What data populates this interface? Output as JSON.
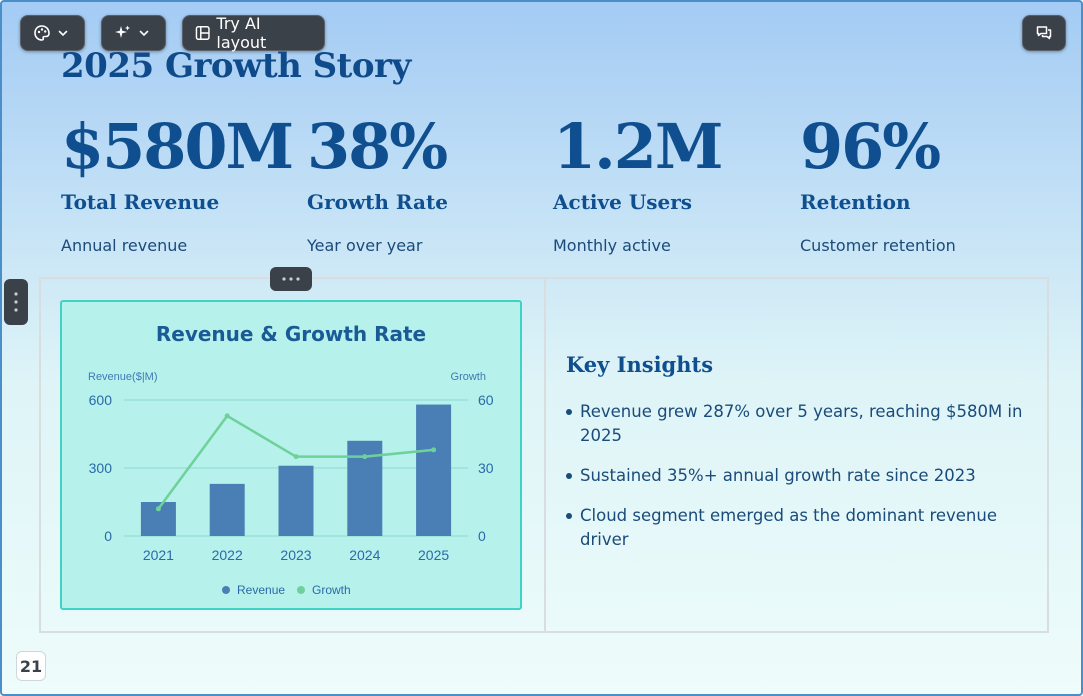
{
  "toolbar": {
    "theme_button": {
      "icon": "palette-icon"
    },
    "ai_button": {
      "icon": "sparkles-icon"
    },
    "try_layout_label": "Try AI layout",
    "comments_button": {
      "icon": "comment-icon"
    }
  },
  "slide": {
    "title": "2025 Growth Story",
    "stats": [
      {
        "value": "$580M",
        "label": "Total Revenue",
        "desc": "Annual revenue"
      },
      {
        "value": "38%",
        "label": "Growth Rate",
        "desc": "Year over year"
      },
      {
        "value": "1.2M",
        "label": "Active Users",
        "desc": "Monthly active"
      },
      {
        "value": "96%",
        "label": "Retention",
        "desc": "Customer retention"
      }
    ],
    "insights_title": "Key Insights",
    "insights": [
      "Revenue grew 287% over 5 years, reaching $580M in 2025",
      "Sustained 35%+ annual growth rate since 2023",
      "Cloud segment emerged as the dominant revenue driver"
    ],
    "page_number": "21"
  },
  "chart_data": {
    "type": "bar",
    "title": "Revenue & Growth Rate",
    "categories": [
      "2021",
      "2022",
      "2023",
      "2024",
      "2025"
    ],
    "series": [
      {
        "name": "Revenue",
        "type": "bar",
        "axis": "left",
        "color": "#4a7fb5",
        "values": [
          150,
          230,
          310,
          420,
          580
        ]
      },
      {
        "name": "Growth",
        "type": "line",
        "axis": "right",
        "color": "#6fd19a",
        "values": [
          12,
          53,
          35,
          35,
          38
        ]
      }
    ],
    "ylabel": "Revenue($|M)",
    "ylim": [
      0,
      600
    ],
    "yticks": [
      0,
      300,
      600
    ],
    "y2label": "Growth",
    "y2lim": [
      0,
      60
    ],
    "y2ticks": [
      0,
      30,
      60
    ],
    "grid": true,
    "legend": "bottom"
  }
}
